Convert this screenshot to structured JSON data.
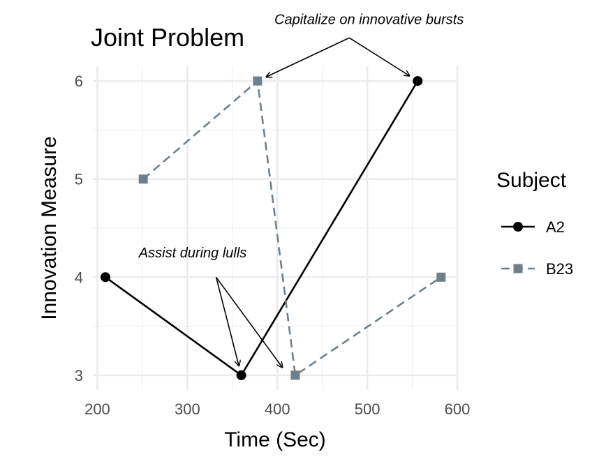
{
  "chart_data": {
    "type": "line",
    "title": "Joint Problem",
    "xlabel": "Time (Sec)",
    "ylabel": "Innovation Measure",
    "xlim": [
      195,
      600
    ],
    "ylim": [
      2.85,
      6.15
    ],
    "x_ticks": [
      200,
      300,
      400,
      500,
      600
    ],
    "y_ticks": [
      3,
      4,
      5,
      6
    ],
    "grid": true,
    "legend": {
      "title": "Subject",
      "position": "right"
    },
    "series": [
      {
        "name": "A2",
        "color": "#000000",
        "marker": "circle",
        "line_style": "solid",
        "points": [
          {
            "x": 209,
            "y": 4
          },
          {
            "x": 360,
            "y": 3
          },
          {
            "x": 556,
            "y": 6
          }
        ]
      },
      {
        "name": "B23",
        "color": "#6e808c",
        "marker": "square",
        "line_style": "dashed",
        "points": [
          {
            "x": 251,
            "y": 5
          },
          {
            "x": 378,
            "y": 6
          },
          {
            "x": 420,
            "y": 3
          },
          {
            "x": 582,
            "y": 4
          }
        ]
      }
    ],
    "annotations": [
      {
        "text": "Capitalize on innovative bursts",
        "text_anchor_data": {
          "x": 502,
          "y": 6.58
        },
        "arrow_start_data": {
          "x": 480,
          "y": 6.44
        },
        "targets": [
          {
            "x": 378,
            "y": 6
          },
          {
            "x": 556,
            "y": 6
          }
        ]
      },
      {
        "text": "Assist during lulls",
        "text_anchor_data": {
          "x": 306,
          "y": 4.2
        },
        "arrow_start_data": {
          "x": 332,
          "y": 4
        },
        "targets": [
          {
            "x": 360,
            "y": 3
          },
          {
            "x": 412,
            "y": 3
          }
        ]
      }
    ]
  }
}
